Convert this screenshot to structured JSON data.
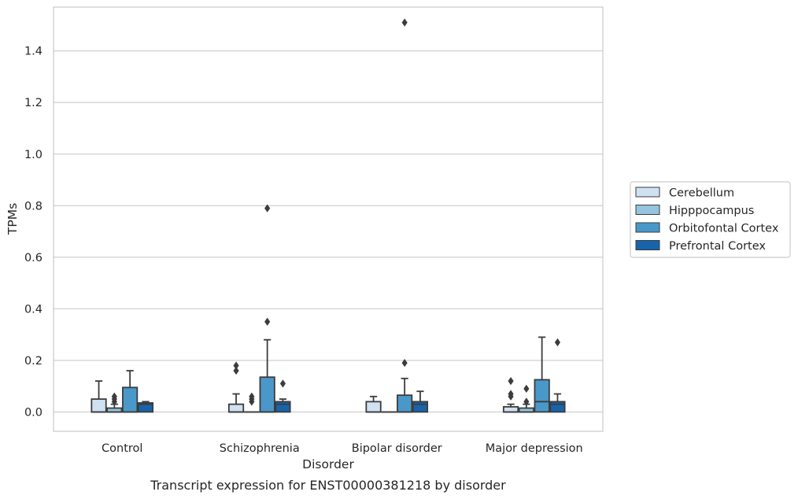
{
  "caption": "Transcript expression for ENST00000381218 by disorder",
  "colors": {
    "Cerebellum": "#d0e1f2",
    "Hipppocampus": "#94c4df",
    "Orbitofontal Cortex": "#4a98c9",
    "Prefrontal Cortex": "#1764ab",
    "edge": "#3c3c3c",
    "grid": "#cccccc"
  },
  "chart_data": {
    "type": "box",
    "title": "",
    "xlabel": "Disorder",
    "ylabel": "TPMs",
    "ylim": [
      -0.075,
      1.57
    ],
    "yticks": [
      "0.0",
      "0.2",
      "0.4",
      "0.6",
      "0.8",
      "1.0",
      "1.2",
      "1.4"
    ],
    "grid": "horizontal",
    "legend_placement": "right",
    "categories": [
      "Control",
      "Schizophrenia",
      "Bipolar disorder",
      "Major depression"
    ],
    "series": [
      {
        "name": "Cerebellum",
        "boxes": [
          {
            "min": 0.0,
            "q1": 0.0,
            "median": 0.0,
            "q3": 0.05,
            "max": 0.12,
            "outliers": []
          },
          {
            "min": 0.0,
            "q1": 0.0,
            "median": 0.0,
            "q3": 0.03,
            "max": 0.07,
            "outliers": [
              0.16,
              0.18
            ]
          },
          {
            "min": 0.0,
            "q1": 0.0,
            "median": 0.0,
            "q3": 0.04,
            "max": 0.06,
            "outliers": []
          },
          {
            "min": 0.0,
            "q1": 0.0,
            "median": 0.0,
            "q3": 0.02,
            "max": 0.03,
            "outliers": [
              0.06,
              0.07,
              0.12
            ]
          }
        ]
      },
      {
        "name": "Hipppocampus",
        "boxes": [
          {
            "min": 0.0,
            "q1": 0.0,
            "median": 0.0,
            "q3": 0.015,
            "max": 0.03,
            "outliers": [
              0.04,
              0.05,
              0.06
            ]
          },
          {
            "min": 0.0,
            "q1": 0.0,
            "median": 0.0,
            "q3": 0.0,
            "max": 0.0,
            "outliers": [
              0.04,
              0.05,
              0.06
            ]
          },
          {
            "min": 0.0,
            "q1": 0.0,
            "median": 0.0,
            "q3": 0.0,
            "max": 0.0,
            "outliers": []
          },
          {
            "min": 0.0,
            "q1": 0.0,
            "median": 0.0,
            "q3": 0.015,
            "max": 0.03,
            "outliers": [
              0.04,
              0.09
            ]
          }
        ]
      },
      {
        "name": "Orbitofontal Cortex",
        "boxes": [
          {
            "min": 0.0,
            "q1": 0.0,
            "median": 0.0,
            "q3": 0.095,
            "max": 0.16,
            "outliers": []
          },
          {
            "min": 0.0,
            "q1": 0.0,
            "median": 0.0,
            "q3": 0.135,
            "max": 0.28,
            "outliers": [
              0.35,
              0.79
            ]
          },
          {
            "min": 0.0,
            "q1": 0.0,
            "median": 0.0,
            "q3": 0.065,
            "max": 0.13,
            "outliers": [
              0.19,
              1.51
            ]
          },
          {
            "min": 0.0,
            "q1": 0.0,
            "median": 0.04,
            "q3": 0.125,
            "max": 0.29,
            "outliers": []
          }
        ]
      },
      {
        "name": "Prefrontal Cortex",
        "boxes": [
          {
            "min": 0.0,
            "q1": 0.0,
            "median": 0.03,
            "q3": 0.035,
            "max": 0.04,
            "outliers": []
          },
          {
            "min": 0.0,
            "q1": 0.0,
            "median": 0.03,
            "q3": 0.04,
            "max": 0.05,
            "outliers": [
              0.11
            ]
          },
          {
            "min": 0.0,
            "q1": 0.0,
            "median": 0.03,
            "q3": 0.04,
            "max": 0.08,
            "outliers": []
          },
          {
            "min": 0.0,
            "q1": 0.0,
            "median": 0.03,
            "q3": 0.04,
            "max": 0.07,
            "outliers": [
              0.27
            ]
          }
        ]
      }
    ]
  }
}
